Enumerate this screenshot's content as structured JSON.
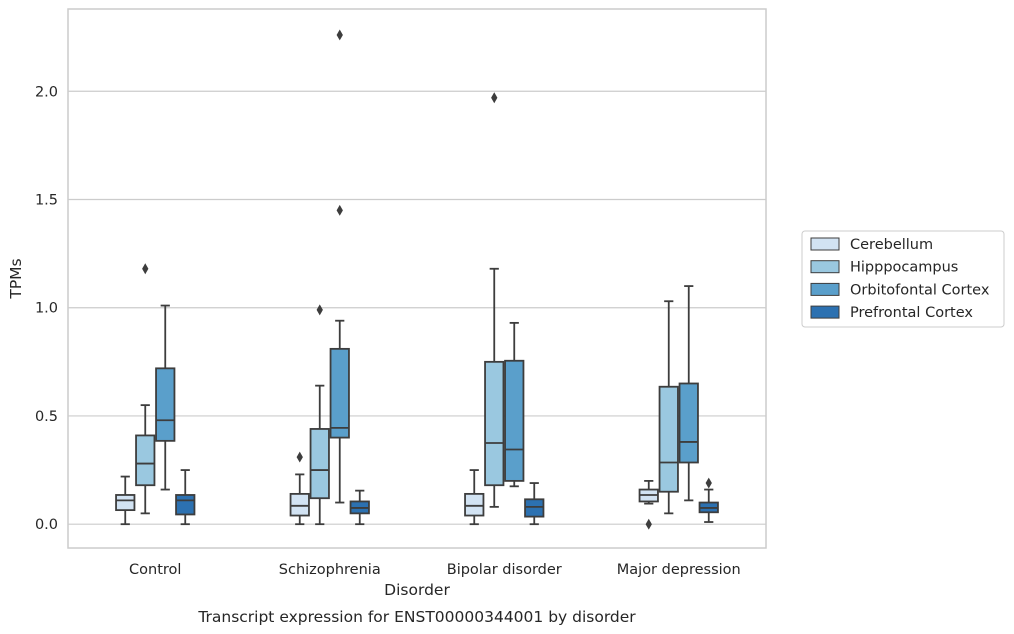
{
  "caption": "Transcript expression for ENST00000344001 by disorder",
  "chart_data": {
    "type": "boxplot",
    "title": "",
    "xlabel": "Disorder",
    "ylabel": "TPMs",
    "ylim": [
      -0.11,
      2.38
    ],
    "yticks": [
      0.0,
      0.5,
      1.0,
      1.5,
      2.0
    ],
    "ytick_labels": [
      "0.0",
      "0.5",
      "1.0",
      "1.5",
      "2.0"
    ],
    "grid": "horizontal",
    "legend_position": "right",
    "categories": [
      "Control",
      "Schizophrenia",
      "Bipolar disorder",
      "Major depression"
    ],
    "series": [
      {
        "name": "Cerebellum",
        "color": "#d2e3f3",
        "boxes": [
          {
            "whislo": 0.0,
            "q1": 0.065,
            "med": 0.11,
            "q3": 0.135,
            "whishi": 0.22,
            "fliers": []
          },
          {
            "whislo": 0.0,
            "q1": 0.04,
            "med": 0.085,
            "q3": 0.14,
            "whishi": 0.23,
            "fliers": [
              0.31
            ]
          },
          {
            "whislo": 0.0,
            "q1": 0.04,
            "med": 0.085,
            "q3": 0.14,
            "whishi": 0.25,
            "fliers": []
          },
          {
            "whislo": 0.095,
            "q1": 0.105,
            "med": 0.135,
            "q3": 0.16,
            "whishi": 0.2,
            "fliers": [
              0.0
            ]
          }
        ]
      },
      {
        "name": "Hipppocampus",
        "color": "#9ac8e0",
        "boxes": [
          {
            "whislo": 0.05,
            "q1": 0.18,
            "med": 0.28,
            "q3": 0.41,
            "whishi": 0.55,
            "fliers": [
              1.18
            ]
          },
          {
            "whislo": 0.0,
            "q1": 0.12,
            "med": 0.25,
            "q3": 0.44,
            "whishi": 0.64,
            "fliers": [
              0.99
            ]
          },
          {
            "whislo": 0.08,
            "q1": 0.18,
            "med": 0.375,
            "q3": 0.75,
            "whishi": 1.18,
            "fliers": [
              1.97
            ]
          },
          {
            "whislo": 0.05,
            "q1": 0.15,
            "med": 0.285,
            "q3": 0.635,
            "whishi": 1.03,
            "fliers": []
          }
        ]
      },
      {
        "name": "Orbitofontal Cortex",
        "color": "#5a9fcb",
        "boxes": [
          {
            "whislo": 0.16,
            "q1": 0.385,
            "med": 0.48,
            "q3": 0.72,
            "whishi": 1.01,
            "fliers": []
          },
          {
            "whislo": 0.1,
            "q1": 0.4,
            "med": 0.445,
            "q3": 0.81,
            "whishi": 0.94,
            "fliers": [
              2.26,
              1.45
            ]
          },
          {
            "whislo": 0.175,
            "q1": 0.2,
            "med": 0.345,
            "q3": 0.755,
            "whishi": 0.93,
            "fliers": []
          },
          {
            "whislo": 0.11,
            "q1": 0.285,
            "med": 0.38,
            "q3": 0.65,
            "whishi": 1.1,
            "fliers": []
          }
        ]
      },
      {
        "name": "Prefrontal Cortex",
        "color": "#2c71b1",
        "boxes": [
          {
            "whislo": 0.0,
            "q1": 0.045,
            "med": 0.11,
            "q3": 0.135,
            "whishi": 0.25,
            "fliers": []
          },
          {
            "whislo": 0.0,
            "q1": 0.05,
            "med": 0.075,
            "q3": 0.105,
            "whishi": 0.155,
            "fliers": []
          },
          {
            "whislo": 0.0,
            "q1": 0.035,
            "med": 0.08,
            "q3": 0.115,
            "whishi": 0.19,
            "fliers": []
          },
          {
            "whislo": 0.01,
            "q1": 0.055,
            "med": 0.075,
            "q3": 0.1,
            "whishi": 0.16,
            "fliers": [
              0.19
            ]
          }
        ]
      }
    ]
  }
}
